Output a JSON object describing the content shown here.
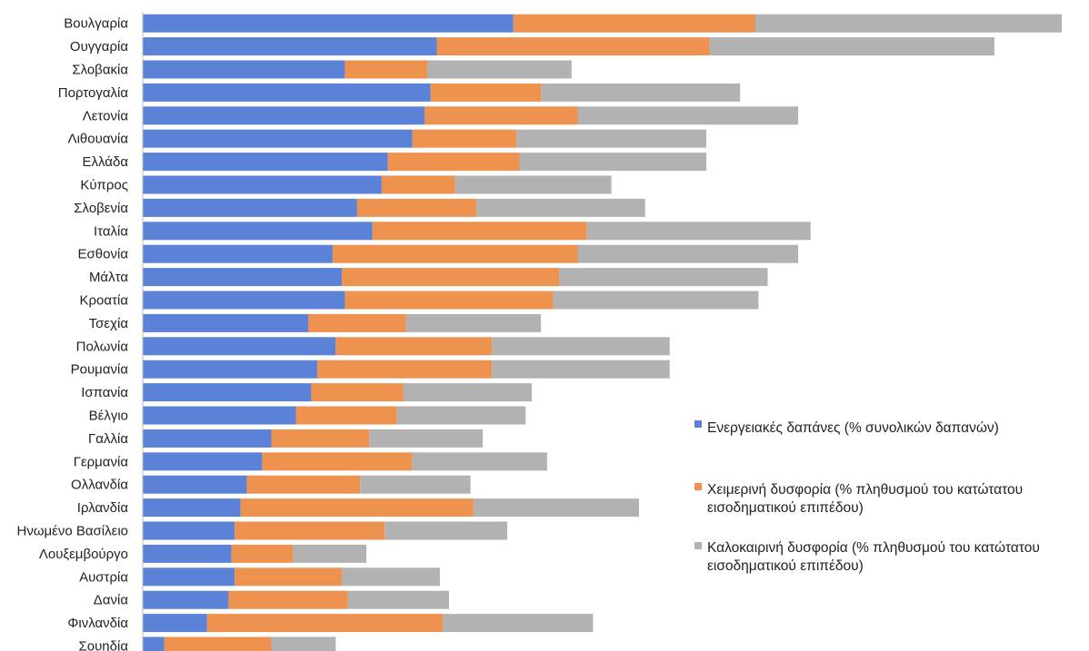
{
  "chart_data": {
    "type": "bar",
    "orientation": "horizontal",
    "stacked": true,
    "categories": [
      "Βουλγαρία",
      "Ουγγαρία",
      "Σλοβακία",
      "Πορτογαλία",
      "Λετονία",
      "Λιθουανία",
      "Ελλάδα",
      "Κύπρος",
      "Σλοβενία",
      "Ιταλία",
      "Εσθονία",
      "Μάλτα",
      "Κροατία",
      "Τσεχία",
      "Πολωνία",
      "Ρουμανία",
      "Ισπανία",
      "Βέλγιο",
      "Γαλλία",
      "Γερμανία",
      "Ολλανδία",
      "Ιρλανδία",
      "Ηνωμένο Βασίλειο",
      "Λουξεμβούργο",
      "Αυστρία",
      "Δανία",
      "Φινλανδία",
      "Σουηδία"
    ],
    "series": [
      {
        "name": "Ενεργειακές δαπάνες (% συνολικών δαπανών)",
        "color": "#5b82d6",
        "values": [
          12.1,
          9.6,
          6.6,
          9.4,
          9.2,
          8.8,
          8.0,
          7.8,
          7.0,
          7.5,
          6.2,
          6.5,
          6.6,
          5.4,
          6.3,
          5.7,
          5.5,
          5.0,
          4.2,
          3.9,
          3.4,
          3.2,
          3.0,
          2.9,
          3.0,
          2.8,
          2.1,
          0.7
        ]
      },
      {
        "name": "Χειμερινή δυσφορία (% πληθυσμού του κατώτατου εισοδηματικού επιπέδου)",
        "color": "#ee924f",
        "values": [
          7.9,
          8.9,
          2.7,
          3.6,
          5.0,
          3.4,
          4.3,
          2.4,
          3.9,
          7.0,
          8.0,
          7.1,
          6.8,
          3.2,
          5.1,
          5.7,
          3.0,
          3.3,
          3.2,
          4.9,
          3.7,
          7.6,
          4.9,
          2.0,
          3.5,
          3.9,
          7.7,
          3.5
        ]
      },
      {
        "name": "Καλοκαιρινή δυσφορία (% πληθυσμού του κατώτατου εισοδηματικού επιπέδου)",
        "color": "#b2b2b2",
        "values": [
          10.0,
          9.3,
          4.7,
          6.5,
          7.2,
          6.2,
          6.1,
          5.1,
          5.5,
          7.3,
          7.2,
          6.8,
          6.7,
          4.4,
          5.8,
          5.8,
          4.2,
          4.2,
          3.7,
          4.4,
          3.6,
          5.4,
          4.0,
          2.4,
          3.2,
          3.3,
          4.9,
          2.1
        ]
      }
    ],
    "xlim": [
      0,
      30
    ],
    "grid": false,
    "legend_position": "right"
  }
}
